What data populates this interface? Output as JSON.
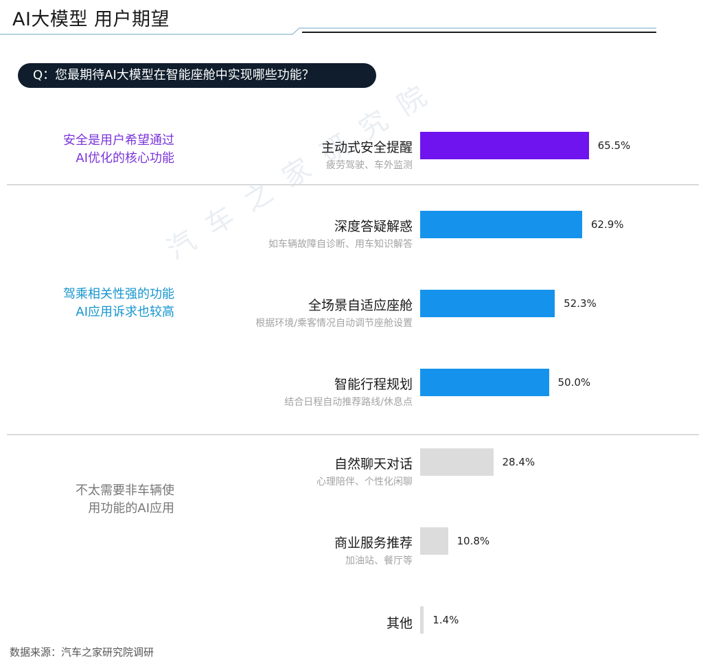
{
  "header": {
    "title": "AI大模型 用户期望",
    "question": "Q：您最期待AI大模型在智能座舱中实现哪些功能？"
  },
  "groups": [
    {
      "line1": "安全是用户希望通过",
      "line2": "AI优化的核心功能",
      "color": "#7a35d9"
    },
    {
      "line1": "驾乘相关性强的功能",
      "line2": "AI应用诉求也较高",
      "color": "#1795cf"
    },
    {
      "line1": "不太需要非车辆使",
      "line2": "用功能的AI应用",
      "color": "#777777"
    }
  ],
  "watermark": "汽车之家研究院",
  "colors": {
    "purple": "#6f14ee",
    "blue": "#1593ec",
    "gray": "#dcdcdc"
  },
  "chart_data": {
    "type": "bar",
    "orientation": "horizontal",
    "categories": [
      "主动式安全提醒",
      "深度答疑解惑",
      "全场景自适应座舱",
      "智能行程规划",
      "自然聊天对话",
      "商业服务推荐",
      "其他"
    ],
    "subtitles": [
      "疲劳驾驶、车外监测",
      "如车辆故障自诊断、用车知识解答",
      "根据环境/乘客情况自动调节座舱设置",
      "结合日程自动推荐路线/休息点",
      "心理陪伴、个性化闲聊",
      "加油站、餐厅等",
      ""
    ],
    "values": [
      65.5,
      62.9,
      52.3,
      50.0,
      28.4,
      10.8,
      1.4
    ],
    "value_labels": [
      "65.5%",
      "62.9%",
      "52.3%",
      "50.0%",
      "28.4%",
      "10.8%",
      "1.4%"
    ],
    "bar_colors": [
      "#6f14ee",
      "#1593ec",
      "#1593ec",
      "#1593ec",
      "#dcdcdc",
      "#dcdcdc",
      "#dcdcdc"
    ],
    "xlim": [
      0,
      100
    ],
    "grid": false
  },
  "source": "数据来源：汽车之家研究院调研"
}
